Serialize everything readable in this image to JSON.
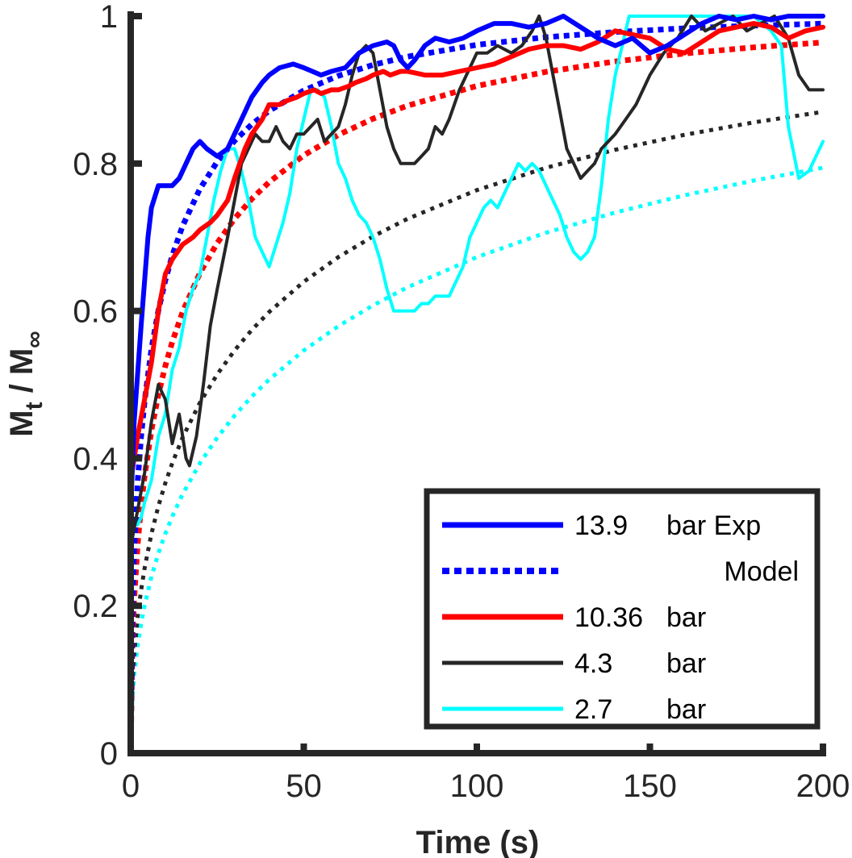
{
  "chart_data": {
    "type": "line",
    "title": "",
    "xlabel": "Time (s)",
    "ylabel": {
      "main": "M",
      "sub_t": "t",
      "slash": " / M",
      "sub_inf": "∞"
    },
    "xlim": [
      0,
      200
    ],
    "ylim": [
      0,
      1
    ],
    "xticks": [
      0,
      50,
      100,
      150,
      200
    ],
    "xtick_labels": [
      "0",
      "50",
      "100",
      "150",
      "200"
    ],
    "yticks": [
      0,
      0.2,
      0.4,
      0.6,
      0.8,
      1
    ],
    "ytick_labels": [
      "0",
      "0.2",
      "0.4",
      "0.6",
      "0.8",
      "1"
    ],
    "grid": false,
    "legend_position": "bottom-right",
    "legend": [
      {
        "col1": "13.9",
        "col2": "bar Exp",
        "color": "#0000ff",
        "style": "solid"
      },
      {
        "col1": "",
        "col2": "Model",
        "color": "#0000ff",
        "style": "dotted"
      },
      {
        "col1": "10.36",
        "col2": "bar",
        "color": "#ff0000",
        "style": "solid"
      },
      {
        "col1": "4.3",
        "col2": "bar",
        "color": "#262626",
        "style": "solid"
      },
      {
        "col1": "2.7",
        "col2": "bar",
        "color": "#00ffff",
        "style": "solid"
      }
    ],
    "series": [
      {
        "key": "exp-13-9",
        "color": "#0000ff",
        "style": "solid",
        "width": 6,
        "x": [
          0,
          1,
          3,
          5,
          6,
          8,
          10,
          12,
          14,
          16,
          18,
          20,
          22,
          25,
          28,
          30,
          32,
          35,
          38,
          40,
          43,
          47,
          50,
          55,
          58,
          62,
          66,
          70,
          74,
          76,
          78,
          80,
          82,
          85,
          88,
          92,
          96,
          100,
          105,
          110,
          115,
          120,
          125,
          130,
          135,
          140,
          145,
          150,
          155,
          160,
          165,
          170,
          175,
          180,
          185,
          190,
          195,
          200
        ],
        "y": [
          0.33,
          0.45,
          0.58,
          0.7,
          0.74,
          0.77,
          0.77,
          0.77,
          0.78,
          0.8,
          0.82,
          0.83,
          0.82,
          0.81,
          0.82,
          0.84,
          0.86,
          0.89,
          0.91,
          0.92,
          0.93,
          0.935,
          0.93,
          0.92,
          0.925,
          0.93,
          0.95,
          0.96,
          0.965,
          0.96,
          0.94,
          0.93,
          0.94,
          0.96,
          0.97,
          0.965,
          0.97,
          0.98,
          0.99,
          0.99,
          0.985,
          0.99,
          1.0,
          0.985,
          0.97,
          0.96,
          0.97,
          0.95,
          0.96,
          0.975,
          0.99,
          1.0,
          0.995,
          1.0,
          0.995,
          1.0,
          1.0,
          1.0
        ]
      },
      {
        "key": "model-13-9",
        "color": "#0000ff",
        "style": "dotted",
        "width": 7,
        "tau": 9.5,
        "x": [
          0,
          0.5,
          1,
          2,
          3,
          4,
          6,
          8,
          10,
          12,
          15,
          20,
          25,
          30,
          35,
          40,
          50,
          60,
          70,
          80,
          100,
          120,
          140,
          160,
          180,
          200
        ]
      },
      {
        "key": "exp-10-36",
        "color": "#ff0000",
        "style": "solid",
        "width": 6,
        "x": [
          0,
          2,
          4,
          6,
          8,
          10,
          12,
          15,
          18,
          20,
          23,
          25,
          28,
          30,
          33,
          35,
          38,
          40,
          43,
          45,
          48,
          50,
          53,
          55,
          58,
          60,
          63,
          65,
          68,
          70,
          73,
          75,
          78,
          80,
          85,
          90,
          95,
          100,
          105,
          110,
          115,
          120,
          125,
          130,
          135,
          140,
          145,
          150,
          155,
          160,
          165,
          170,
          175,
          180,
          185,
          190,
          195,
          200
        ],
        "y": [
          0.37,
          0.43,
          0.48,
          0.53,
          0.6,
          0.65,
          0.67,
          0.69,
          0.7,
          0.71,
          0.72,
          0.73,
          0.75,
          0.78,
          0.82,
          0.84,
          0.86,
          0.88,
          0.88,
          0.885,
          0.89,
          0.895,
          0.9,
          0.895,
          0.9,
          0.9,
          0.905,
          0.91,
          0.915,
          0.92,
          0.925,
          0.92,
          0.925,
          0.925,
          0.92,
          0.92,
          0.925,
          0.93,
          0.935,
          0.945,
          0.955,
          0.96,
          0.96,
          0.955,
          0.965,
          0.98,
          0.975,
          0.97,
          0.955,
          0.95,
          0.965,
          0.98,
          0.985,
          0.99,
          0.985,
          0.97,
          0.98,
          0.985
        ]
      },
      {
        "key": "model-10-36",
        "color": "#ff0000",
        "style": "dotted",
        "width": 7,
        "tau": 18,
        "x": [
          0,
          0.5,
          1,
          2,
          3,
          4,
          6,
          8,
          10,
          12,
          15,
          20,
          25,
          30,
          35,
          40,
          50,
          60,
          70,
          80,
          100,
          120,
          140,
          160,
          180,
          200
        ]
      },
      {
        "key": "exp-4-3",
        "color": "#262626",
        "style": "solid",
        "width": 4,
        "x": [
          0,
          2,
          4,
          6,
          8,
          10,
          12,
          14,
          16,
          17,
          19,
          21,
          23,
          25,
          28,
          30,
          32,
          34,
          36,
          38,
          40,
          42,
          44,
          46,
          48,
          50,
          52,
          54,
          56,
          58,
          60,
          62,
          64,
          66,
          68,
          70,
          72,
          74,
          76,
          78,
          80,
          82,
          84,
          86,
          88,
          90,
          92,
          95,
          98,
          100,
          103,
          106,
          110,
          113,
          116,
          118,
          120,
          122,
          124,
          126,
          128,
          130,
          132,
          134,
          136,
          138,
          140,
          143,
          146,
          150,
          154,
          158,
          162,
          166,
          170,
          174,
          178,
          182,
          186,
          190,
          193,
          196,
          200
        ],
        "y": [
          0.28,
          0.33,
          0.38,
          0.45,
          0.5,
          0.48,
          0.42,
          0.46,
          0.4,
          0.39,
          0.43,
          0.5,
          0.58,
          0.63,
          0.7,
          0.75,
          0.8,
          0.82,
          0.84,
          0.83,
          0.83,
          0.85,
          0.83,
          0.82,
          0.84,
          0.84,
          0.85,
          0.86,
          0.83,
          0.84,
          0.85,
          0.88,
          0.92,
          0.95,
          0.96,
          0.95,
          0.9,
          0.85,
          0.82,
          0.8,
          0.8,
          0.8,
          0.81,
          0.82,
          0.85,
          0.84,
          0.86,
          0.9,
          0.93,
          0.95,
          0.95,
          0.96,
          0.95,
          0.96,
          0.98,
          1.0,
          0.97,
          0.92,
          0.87,
          0.82,
          0.8,
          0.78,
          0.79,
          0.8,
          0.82,
          0.83,
          0.84,
          0.86,
          0.88,
          0.92,
          0.95,
          0.97,
          1.0,
          0.98,
          0.99,
          1.0,
          0.98,
          0.99,
          1.0,
          0.97,
          0.92,
          0.9,
          0.9
        ]
      },
      {
        "key": "model-4-3",
        "color": "#262626",
        "style": "dotted",
        "width": 5,
        "tau": 48,
        "x": [
          0,
          0.5,
          1,
          2,
          3,
          4,
          6,
          8,
          10,
          12,
          15,
          20,
          25,
          30,
          35,
          40,
          50,
          60,
          70,
          80,
          100,
          120,
          140,
          160,
          180,
          200
        ]
      },
      {
        "key": "exp-2-7",
        "color": "#00ffff",
        "style": "solid",
        "width": 4,
        "x": [
          0,
          1,
          2,
          3,
          4,
          6,
          8,
          10,
          12,
          14,
          16,
          18,
          20,
          22,
          24,
          26,
          28,
          30,
          32,
          34,
          36,
          38,
          40,
          42,
          44,
          46,
          48,
          50,
          52,
          54,
          56,
          58,
          60,
          62,
          64,
          66,
          68,
          70,
          72,
          74,
          76,
          78,
          80,
          82,
          84,
          86,
          88,
          90,
          92,
          94,
          96,
          98,
          100,
          102,
          104,
          106,
          108,
          110,
          112,
          114,
          116,
          118,
          120,
          122,
          124,
          126,
          128,
          130,
          132,
          134,
          136,
          138,
          140,
          142,
          144,
          146,
          148,
          150,
          155,
          160,
          165,
          170,
          175,
          180,
          185,
          188,
          190,
          193,
          196,
          198,
          200
        ],
        "y": [
          0.32,
          0.31,
          0.31,
          0.32,
          0.34,
          0.37,
          0.43,
          0.46,
          0.52,
          0.55,
          0.6,
          0.63,
          0.65,
          0.7,
          0.75,
          0.79,
          0.82,
          0.82,
          0.79,
          0.75,
          0.7,
          0.68,
          0.66,
          0.69,
          0.72,
          0.76,
          0.82,
          0.86,
          0.9,
          0.9,
          0.89,
          0.85,
          0.8,
          0.78,
          0.75,
          0.73,
          0.72,
          0.7,
          0.67,
          0.63,
          0.6,
          0.6,
          0.6,
          0.6,
          0.61,
          0.61,
          0.62,
          0.62,
          0.62,
          0.64,
          0.66,
          0.7,
          0.72,
          0.74,
          0.75,
          0.74,
          0.76,
          0.78,
          0.8,
          0.79,
          0.8,
          0.79,
          0.77,
          0.75,
          0.73,
          0.7,
          0.68,
          0.67,
          0.68,
          0.7,
          0.77,
          0.86,
          0.92,
          0.96,
          1.0,
          1.0,
          1.0,
          1.0,
          1.0,
          1.0,
          1.0,
          1.0,
          1.0,
          1.0,
          0.98,
          0.96,
          0.85,
          0.78,
          0.79,
          0.81,
          0.83
        ]
      },
      {
        "key": "model-2-7",
        "color": "#00ffff",
        "style": "dotted",
        "width": 5,
        "tau": 80,
        "x": [
          0,
          0.5,
          1,
          2,
          3,
          4,
          6,
          8,
          10,
          12,
          15,
          20,
          25,
          30,
          35,
          40,
          50,
          60,
          70,
          80,
          100,
          120,
          140,
          160,
          180,
          200
        ]
      }
    ]
  }
}
